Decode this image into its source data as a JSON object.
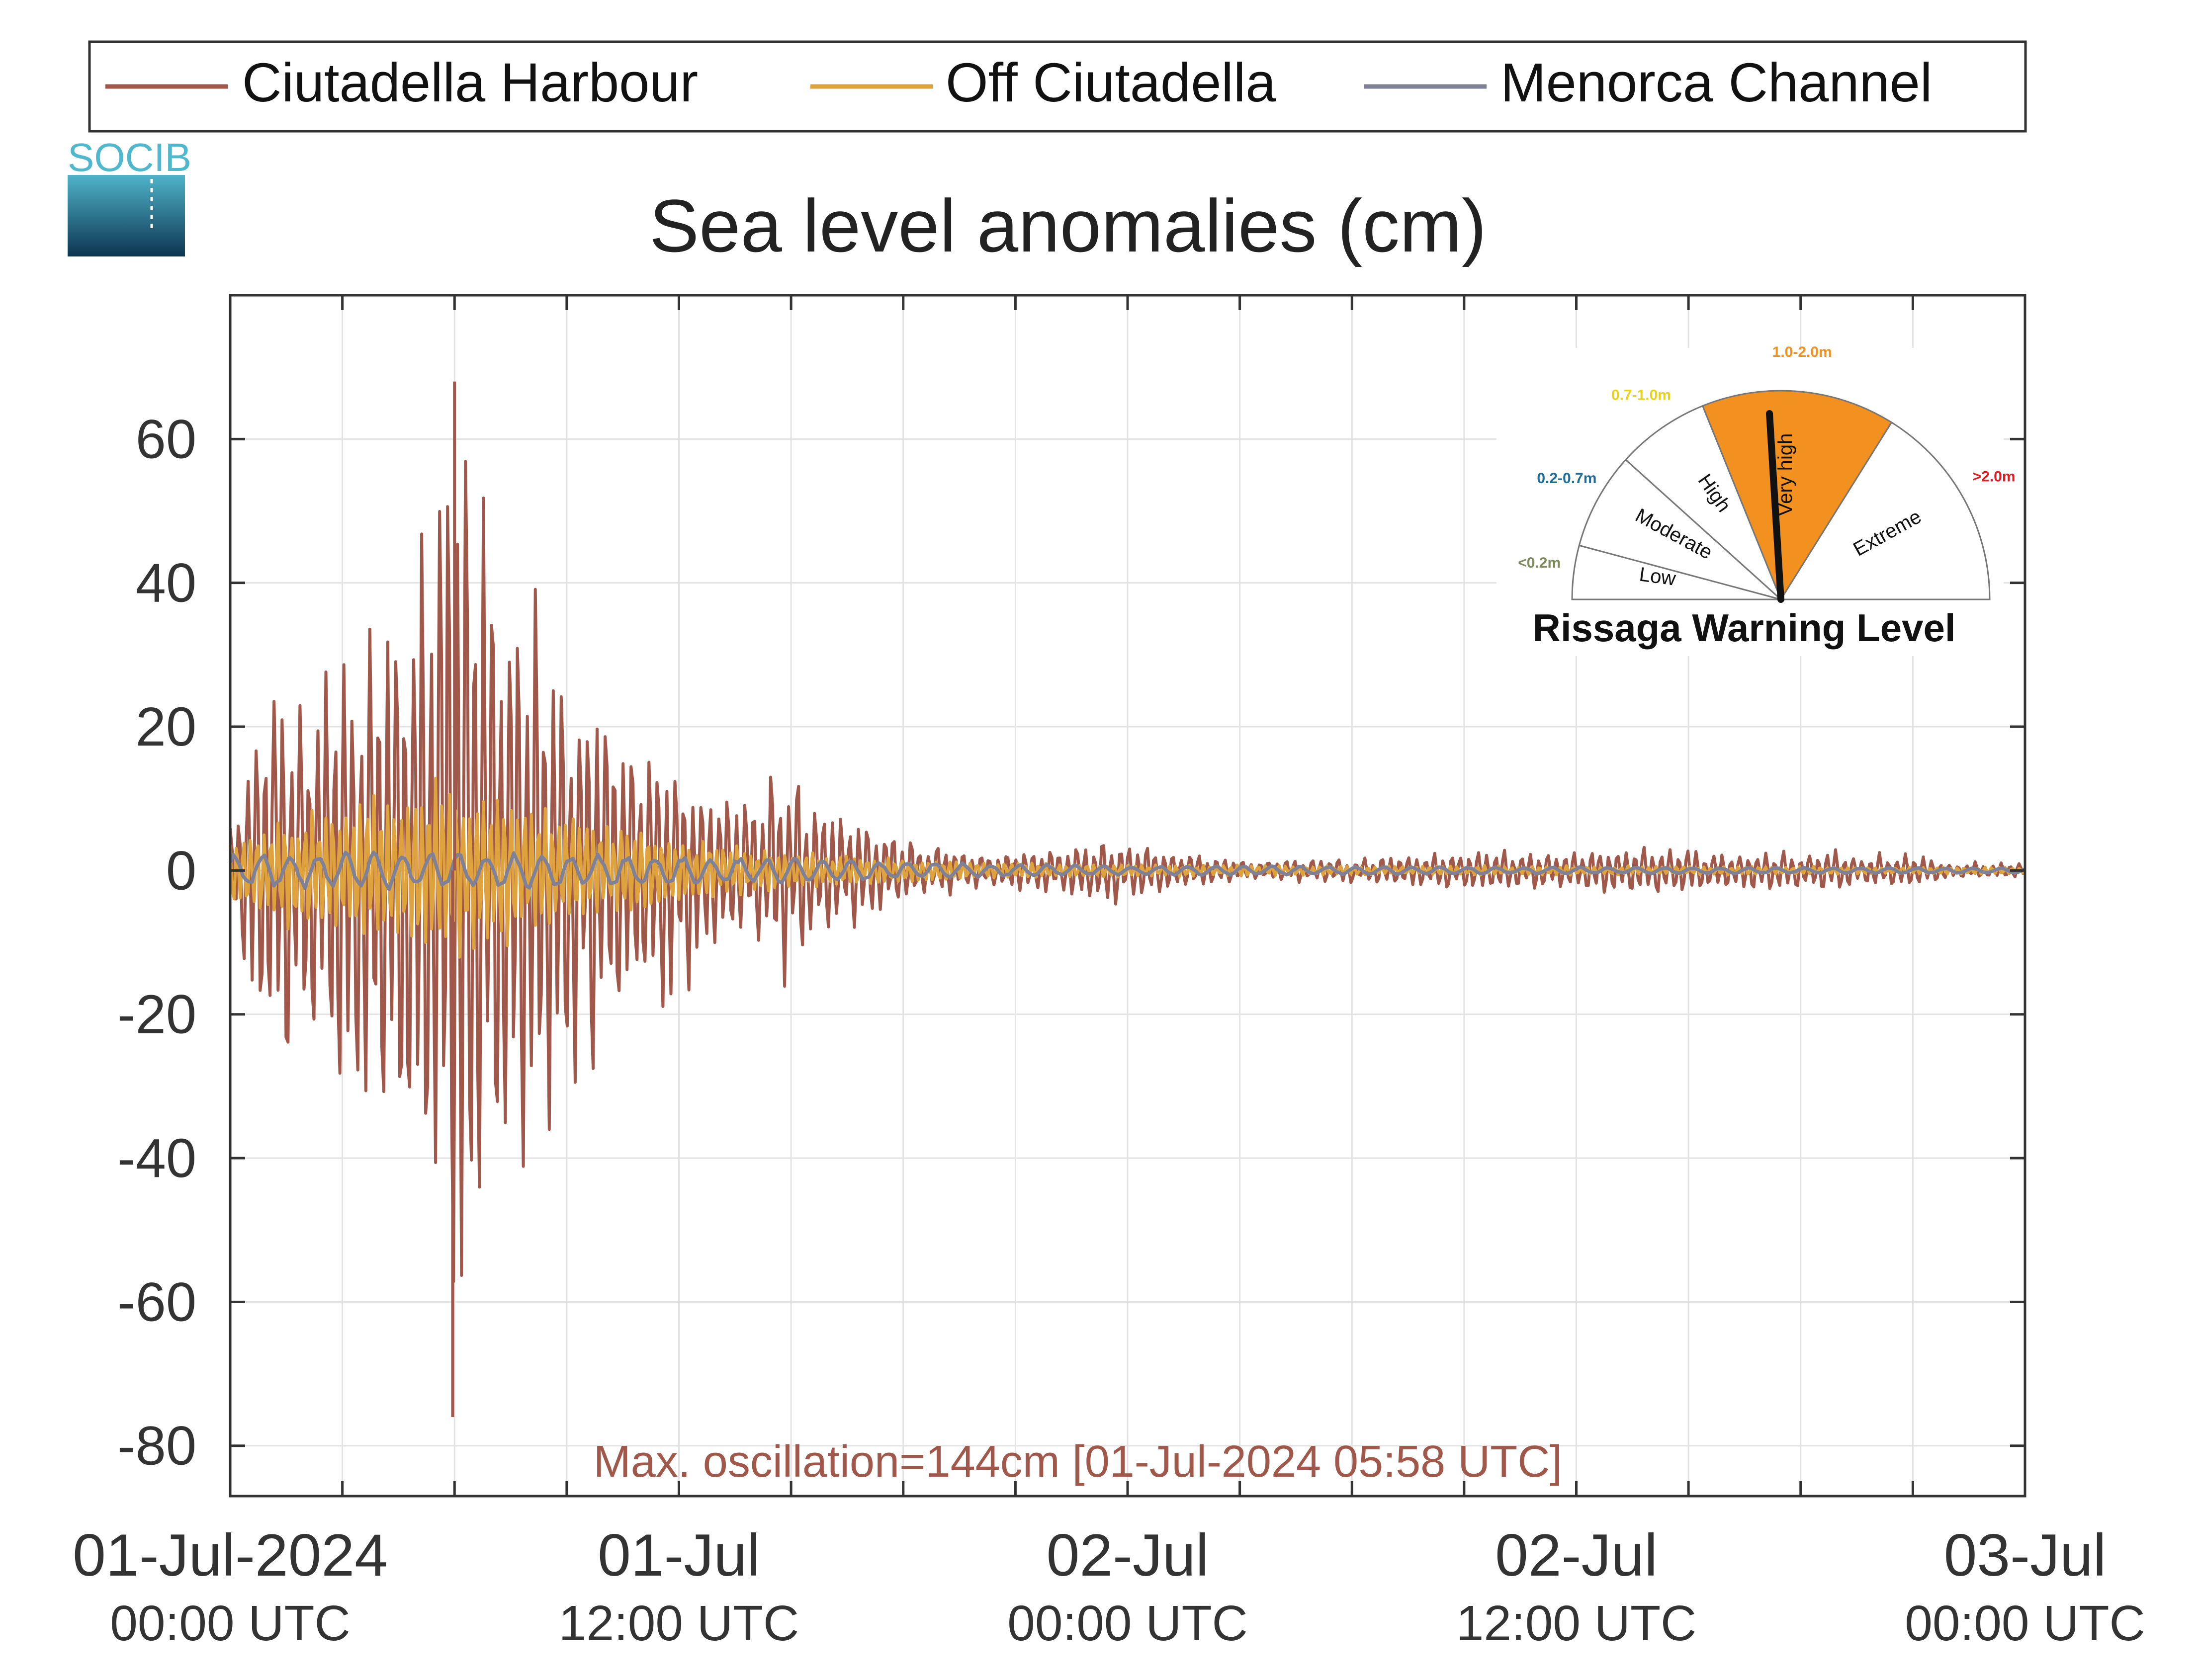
{
  "logo": {
    "text": "SOCIB"
  },
  "legend": {
    "entries": [
      "Ciutadella Harbour",
      "Off Ciutadella",
      "Menorca Channel"
    ]
  },
  "colors": {
    "harbour": "#a0584a",
    "off": "#dfa33e",
    "channel": "#7f8197",
    "annotation": "#a0584a",
    "gauge_orange": "#f2911f"
  },
  "annotation": {
    "text": "Max. oscillation=144cm [01-Jul-2024 05:58 UTC]"
  },
  "gauge": {
    "title": "Rissaga Warning Level",
    "segments": [
      {
        "name": "Low",
        "range": "<0.2m",
        "range_color": "#7c8a5c"
      },
      {
        "name": "Moderate",
        "range": "0.2-0.7m",
        "range_color": "#1f6d99"
      },
      {
        "name": "High",
        "range": "0.7-1.0m",
        "range_color": "#e8d21e"
      },
      {
        "name": "Very high",
        "range": "1.0-2.0m",
        "range_color": "#f2911f"
      },
      {
        "name": "Extreme",
        "range": ">2.0m",
        "range_color": "#e01b24"
      }
    ],
    "active": "Very high"
  },
  "chart_data": {
    "type": "line",
    "title": "Sea level anomalies (cm)",
    "xlabel": "",
    "ylabel": "",
    "ylim": [
      -87,
      80
    ],
    "xlim_hours": [
      0,
      48
    ],
    "y_ticks": [
      60,
      40,
      20,
      0,
      -20,
      -40,
      -60,
      -80
    ],
    "x_tick_labels": [
      {
        "hour": 0,
        "line1": "01-Jul-2024",
        "line2": "00:00 UTC"
      },
      {
        "hour": 12,
        "line1": "01-Jul",
        "line2": "12:00 UTC"
      },
      {
        "hour": 24,
        "line1": "02-Jul",
        "line2": "00:00 UTC"
      },
      {
        "hour": 36,
        "line1": "02-Jul",
        "line2": "12:00 UTC"
      },
      {
        "hour": 48,
        "line1": "03-Jul",
        "line2": "00:00 UTC"
      }
    ],
    "grid": true,
    "legend_position": "top",
    "series": [
      {
        "name": "Ciutadella Harbour",
        "envelope_hours": [
          0,
          1,
          2,
          3,
          4,
          5,
          6,
          7,
          8,
          9,
          10,
          11,
          12,
          13,
          14,
          15,
          16,
          17,
          18,
          19,
          20,
          21,
          22,
          23,
          24,
          25,
          26,
          27,
          28,
          29,
          30,
          31,
          32,
          33,
          34,
          35,
          36,
          37,
          38,
          39,
          40,
          41,
          42,
          43,
          44,
          45,
          46,
          47,
          48
        ],
        "envelope_amplitude": [
          5,
          32,
          25,
          30,
          36,
          48,
          72,
          48,
          36,
          28,
          25,
          20,
          16,
          12,
          10,
          15,
          9,
          6,
          5,
          3.5,
          2.5,
          2.5,
          3,
          4,
          4,
          3,
          2,
          1.5,
          1.5,
          1.5,
          1.5,
          2,
          2.5,
          3,
          2.5,
          2.5,
          2.5,
          3,
          3.5,
          3,
          2.5,
          2.5,
          2.5,
          2.5,
          2,
          2,
          1,
          1,
          1
        ],
        "max": 68,
        "min": -76
      },
      {
        "name": "Off Ciutadella",
        "envelope_hours": [
          0,
          2,
          4,
          6,
          8,
          10,
          12,
          14,
          16,
          18,
          20,
          24,
          30,
          36,
          42,
          48
        ],
        "envelope_amplitude": [
          6,
          9,
          11,
          14,
          10,
          7,
          5,
          3.5,
          2.5,
          1.8,
          1.2,
          0.9,
          0.7,
          0.7,
          0.6,
          0.5
        ],
        "max": 15,
        "min": -16
      },
      {
        "name": "Menorca Channel",
        "envelope_hours": [
          0,
          4,
          8,
          12,
          16,
          20,
          24,
          36,
          48
        ],
        "envelope_amplitude": [
          2.5,
          2.8,
          2.6,
          2.2,
          1.6,
          1.0,
          0.7,
          0.5,
          0.4
        ],
        "max": 4,
        "min": -4
      }
    ]
  }
}
